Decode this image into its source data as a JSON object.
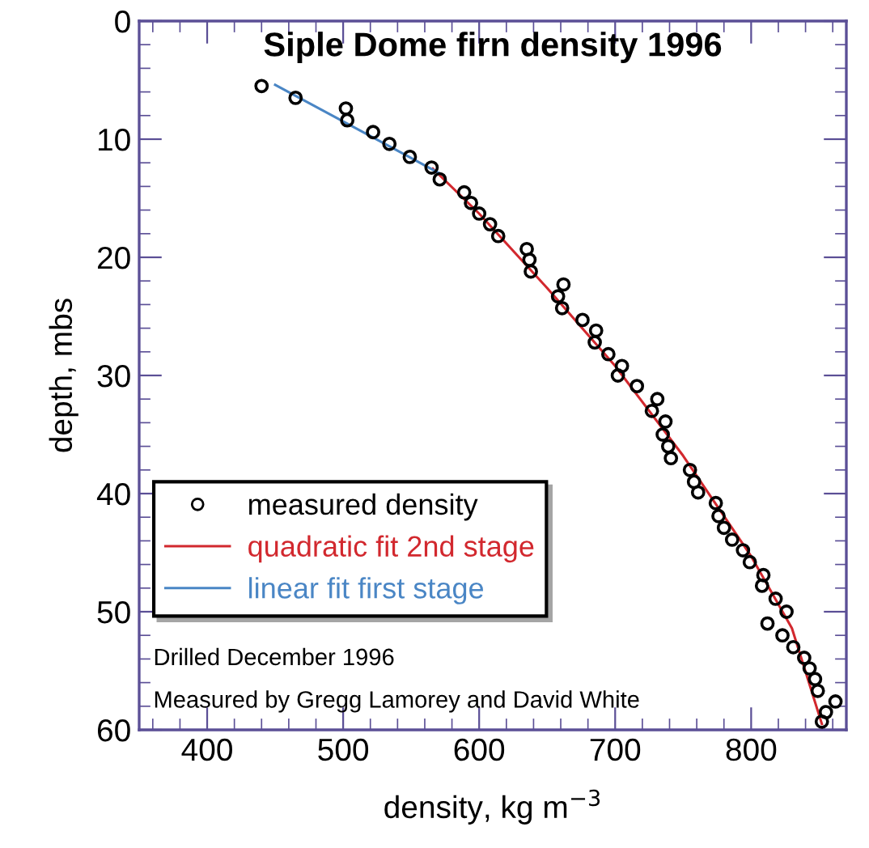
{
  "chart_data": {
    "type": "scatter",
    "title": "Siple Dome firn density 1996",
    "xlabel": "density, kg m$^{−3}$",
    "ylabel": "depth, mbs",
    "annotations": [
      "Drilled December 1996",
      "Measured by Gregg Lamorey and David White"
    ],
    "series": [
      {
        "name": "measured density",
        "type": "scatter",
        "color": "#000000",
        "marker": "circle",
        "x": [
          440,
          465,
          502,
          503,
          522,
          534,
          549,
          565,
          571,
          589,
          594,
          600,
          608,
          614,
          635,
          637,
          638,
          662,
          658,
          661,
          676,
          686,
          685,
          695,
          705,
          702,
          716,
          731,
          727,
          737,
          735,
          739,
          741,
          755,
          758,
          761,
          774,
          776,
          780,
          786,
          794,
          799,
          809,
          808,
          818,
          826,
          812,
          823,
          831,
          839,
          843,
          847,
          849,
          862,
          855,
          852
        ],
        "values": [
          5.5,
          6.5,
          7.4,
          8.4,
          9.4,
          10.4,
          11.5,
          12.4,
          13.4,
          14.5,
          15.4,
          16.3,
          17.2,
          18.2,
          19.3,
          20.2,
          21.2,
          22.3,
          23.3,
          24.3,
          25.3,
          26.2,
          27.2,
          28.2,
          29.2,
          30.0,
          30.9,
          32.0,
          33.0,
          33.9,
          35.0,
          36.0,
          37.0,
          38.0,
          39.0,
          39.9,
          40.8,
          41.9,
          42.9,
          43.9,
          44.8,
          45.8,
          46.9,
          47.8,
          48.9,
          50.0,
          51.0,
          52.0,
          53.0,
          53.9,
          54.8,
          55.7,
          56.7,
          57.6,
          58.5,
          59.3
        ]
      },
      {
        "name": "quadratic fit 2nd stage",
        "type": "line",
        "color": "#d2282e",
        "x": [
          566,
          600,
          650,
          700,
          750,
          800,
          830,
          852
        ],
        "values": [
          12.5,
          16.3,
          22.6,
          29.2,
          36.8,
          45.3,
          51.4,
          59.5
        ]
      },
      {
        "name": "linear fit first stage",
        "type": "line",
        "color": "#4a86c5",
        "x": [
          450,
          571
        ],
        "values": [
          5.4,
          12.9
        ]
      }
    ],
    "xlim": [
      350,
      870
    ],
    "ylim": [
      60,
      0
    ],
    "xticks": [
      {
        "value": 360,
        "label": null
      },
      {
        "value": 380,
        "label": null
      },
      400,
      {
        "value": 420,
        "label": null
      },
      {
        "value": 440,
        "label": null
      },
      {
        "value": 460,
        "label": null
      },
      {
        "value": 480,
        "label": null
      },
      500,
      {
        "value": 520,
        "label": null
      },
      {
        "value": 540,
        "label": null
      },
      {
        "value": 560,
        "label": null
      },
      {
        "value": 580,
        "label": null
      },
      600,
      {
        "value": 620,
        "label": null
      },
      {
        "value": 640,
        "label": null
      },
      {
        "value": 660,
        "label": null
      },
      {
        "value": 680,
        "label": null
      },
      700,
      {
        "value": 720,
        "label": null
      },
      {
        "value": 740,
        "label": null
      },
      {
        "value": 760,
        "label": null
      },
      {
        "value": 780,
        "label": null
      },
      800,
      {
        "value": 820,
        "label": null
      },
      {
        "value": 840,
        "label": null
      },
      {
        "value": 860,
        "label": null
      }
    ],
    "yticks": [
      0,
      {
        "value": 2,
        "label": null
      },
      {
        "value": 4,
        "label": null
      },
      {
        "value": 6,
        "label": null
      },
      {
        "value": 8,
        "label": null
      },
      10,
      {
        "value": 12,
        "label": null
      },
      {
        "value": 14,
        "label": null
      },
      {
        "value": 16,
        "label": null
      },
      {
        "value": 18,
        "label": null
      },
      20,
      {
        "value": 22,
        "label": null
      },
      {
        "value": 24,
        "label": null
      },
      {
        "value": 26,
        "label": null
      },
      {
        "value": 28,
        "label": null
      },
      30,
      {
        "value": 32,
        "label": null
      },
      {
        "value": 34,
        "label": null
      },
      {
        "value": 36,
        "label": null
      },
      {
        "value": 38,
        "label": null
      },
      40,
      {
        "value": 42,
        "label": null
      },
      {
        "value": 44,
        "label": null
      },
      {
        "value": 46,
        "label": null
      },
      {
        "value": 48,
        "label": null
      },
      50,
      {
        "value": 52,
        "label": null
      },
      {
        "value": 54,
        "label": null
      },
      {
        "value": 56,
        "label": null
      },
      {
        "value": 58,
        "label": null
      },
      60
    ],
    "grid": false,
    "legend": "bottom left"
  }
}
